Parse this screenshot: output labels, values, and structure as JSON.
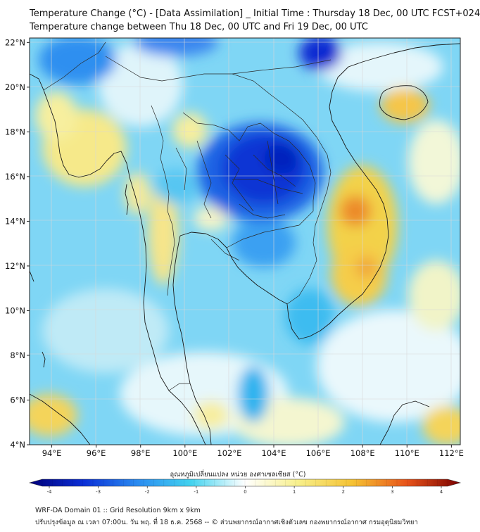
{
  "header": {
    "title_line1": "Temperature Change (°C) - [Data Assimilation] _ Initial Time : Thursday 18 Dec, 00 UTC FCST+024",
    "title_line2": "Temperature change between Thu 18 Dec, 00 UTC and Fri 19 Dec, 00 UTC"
  },
  "map": {
    "lat_labels": [
      "22°N",
      "20°N",
      "18°N",
      "16°N",
      "14°N",
      "12°N",
      "10°N",
      "8°N",
      "6°N",
      "4°N"
    ],
    "lon_labels": [
      "94°E",
      "96°E",
      "98°E",
      "100°E",
      "102°E",
      "104°E",
      "106°E",
      "108°E",
      "110°E",
      "112°E"
    ],
    "lat_values": [
      22,
      20,
      18,
      16,
      14,
      12,
      10,
      8,
      6,
      4
    ],
    "lon_values": [
      94,
      96,
      98,
      100,
      102,
      104,
      106,
      108,
      110,
      112
    ],
    "extent": {
      "lon_min": 93,
      "lon_max": 112.4,
      "lat_min": 4,
      "lat_max": 22.2
    }
  },
  "colorbar": {
    "label": "อุณหภูมิเปลี่ยนแปลง หน่วย องศาเซลเซียส (°C)",
    "ticks": [
      "-4",
      "-3",
      "-2",
      "-1",
      "0",
      "1",
      "2",
      "3",
      "4"
    ],
    "tick_values": [
      -4,
      -3,
      -2,
      -1,
      0,
      1,
      2,
      3,
      4
    ],
    "range": [
      -4,
      4
    ],
    "colors": [
      "#00007a",
      "#0b2fd6",
      "#2a8bf0",
      "#43d3ef",
      "#ffffff",
      "#f7ef8a",
      "#f5c233",
      "#e8541a",
      "#7a0000"
    ]
  },
  "footer": {
    "line1": "WRF-DA Domain 01 :: Grid Resolution 9km x 9km",
    "line2": "ปรับปรุงข้อมูล ณ เวลา 07:00น. วัน พฤ. ที่ 18 ธ.ค. 2568 -- © ส่วนพยากรณ์อากาศเชิงตัวเลข กองพยากรณ์อากาศ กรมอุตุนิยมวิทยา"
  }
}
